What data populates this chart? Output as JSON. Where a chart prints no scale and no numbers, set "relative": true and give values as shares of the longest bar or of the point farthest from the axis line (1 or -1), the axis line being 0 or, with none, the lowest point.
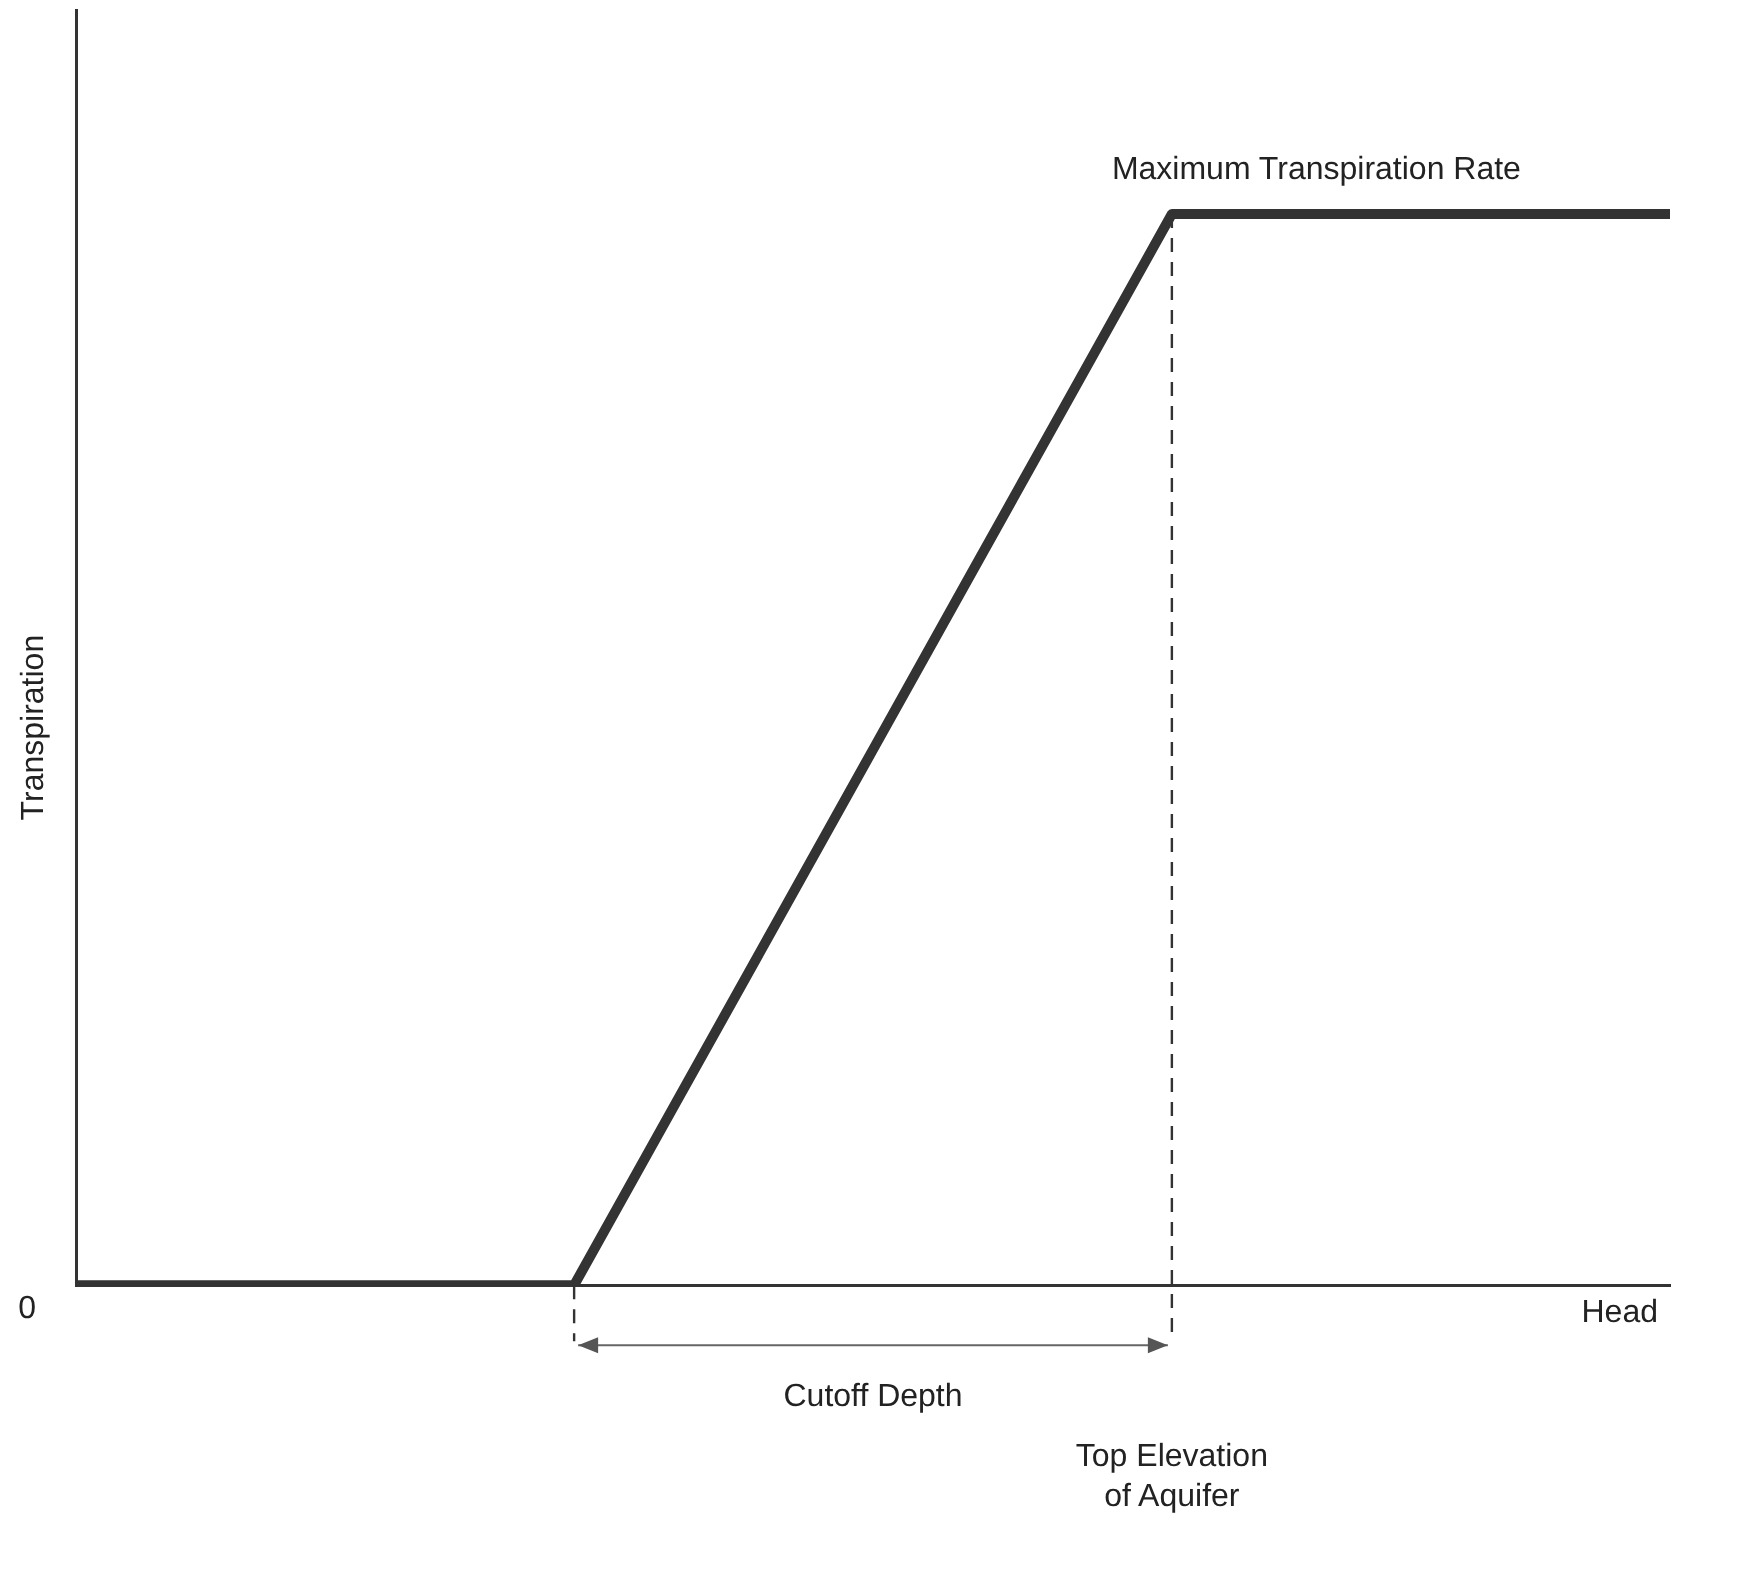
{
  "chart_data": {
    "type": "line",
    "relative": true,
    "xlabel": "Head",
    "ylabel": "Transpiration",
    "categories": [
      null,
      null,
      null,
      null,
      null,
      null,
      null,
      null,
      null,
      null,
      null,
      null,
      null,
      null,
      null,
      null,
      null
    ],
    "series": [
      {
        "color": "#333333",
        "values": [
          0,
          0,
          0,
          0,
          0,
          0,
          0.1667,
          0.3333,
          0.5,
          0.6667,
          0.8333,
          1,
          1,
          1,
          1,
          1,
          1
        ]
      }
    ],
    "annotations": [
      "0",
      "Maximum Transpiration Rate",
      "Cutoff Depth",
      "Top Elevation of Aquifer"
    ],
    "legend": false,
    "grid": false,
    "marker": "none",
    "line_style": "solid"
  }
}
